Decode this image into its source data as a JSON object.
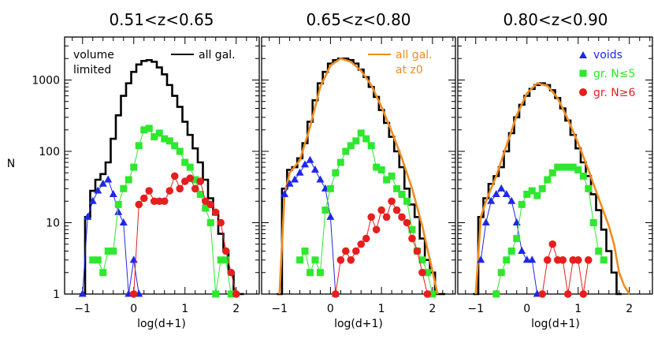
{
  "figure": {
    "ylabel": "N",
    "ytick_labels": [
      "1",
      "10",
      "100",
      "1000"
    ]
  },
  "colors": {
    "all_gal": "#000000",
    "all_gal_z0": "#f08c1e",
    "voids": "#1e28e6",
    "groups_small": "#2ee82e",
    "groups_large": "#e61e1e"
  },
  "chart_data": [
    {
      "type": "line",
      "title": "0.51<z<0.65",
      "xlabel": "log(d+1)",
      "ylabel": "N",
      "xlim": [
        -1.35,
        2.45
      ],
      "ylim": [
        1,
        4000
      ],
      "yscale": "log",
      "x_ticks": [
        "-1",
        "0",
        "1",
        "2"
      ],
      "annotation": [
        "volume",
        "limited"
      ],
      "legend": {
        "all_gal": "all gal."
      },
      "series": [
        {
          "name": "all gal.",
          "style": "step",
          "x": [
            -1.0,
            -0.9,
            -0.8,
            -0.7,
            -0.6,
            -0.5,
            -0.4,
            -0.3,
            -0.2,
            -0.1,
            0.0,
            0.1,
            0.2,
            0.3,
            0.4,
            0.5,
            0.6,
            0.7,
            0.8,
            0.9,
            1.0,
            1.1,
            1.2,
            1.3,
            1.4,
            1.5,
            1.6,
            1.7,
            1.8,
            1.9,
            2.0,
            2.1
          ],
          "y": [
            1,
            12,
            28,
            40,
            48,
            70,
            150,
            320,
            600,
            900,
            1300,
            1650,
            1850,
            1900,
            1800,
            1500,
            1200,
            850,
            600,
            420,
            260,
            170,
            110,
            70,
            40,
            22,
            13,
            7,
            4,
            2,
            1,
            1
          ]
        },
        {
          "name": "voids",
          "style": "triangle",
          "x": [
            -1.0,
            -0.9,
            -0.8,
            -0.7,
            -0.6,
            -0.5,
            -0.4,
            -0.3,
            -0.2,
            -0.1,
            0.0,
            0.1
          ],
          "y": [
            1,
            12,
            20,
            28,
            35,
            40,
            25,
            14,
            10,
            1,
            3,
            1
          ]
        },
        {
          "name": "gr. N≤5",
          "style": "square",
          "x": [
            -0.8,
            -0.7,
            -0.6,
            -0.5,
            -0.4,
            -0.3,
            -0.2,
            -0.1,
            0.0,
            0.1,
            0.2,
            0.3,
            0.4,
            0.5,
            0.6,
            0.7,
            0.8,
            0.9,
            1.0,
            1.1,
            1.2,
            1.3,
            1.4,
            1.5,
            1.6,
            1.7,
            1.8,
            1.9
          ],
          "y": [
            3,
            3,
            2,
            4,
            4,
            18,
            30,
            40,
            60,
            120,
            200,
            210,
            160,
            180,
            150,
            140,
            120,
            100,
            70,
            60,
            40,
            25,
            16,
            10,
            1,
            3,
            3,
            1
          ]
        },
        {
          "name": "gr. N≥6",
          "style": "circle",
          "x": [
            0.0,
            0.1,
            0.2,
            0.3,
            0.4,
            0.5,
            0.6,
            0.7,
            0.8,
            0.9,
            1.0,
            1.1,
            1.2,
            1.3,
            1.4,
            1.5,
            1.6,
            1.7,
            1.8,
            1.9,
            2.0
          ],
          "y": [
            1,
            18,
            22,
            28,
            20,
            20,
            20,
            28,
            45,
            30,
            38,
            42,
            30,
            38,
            20,
            18,
            14,
            10,
            4,
            2,
            1
          ]
        }
      ]
    },
    {
      "type": "line",
      "title": "0.65<z<0.80",
      "xlabel": "log(d+1)",
      "ylabel": "",
      "xlim": [
        -1.35,
        2.45
      ],
      "ylim": [
        1,
        4000
      ],
      "yscale": "log",
      "x_ticks": [
        "-1",
        "0",
        "1",
        "2"
      ],
      "legend": {
        "all_gal_z0": [
          "all gal.",
          "at z0"
        ]
      },
      "series": [
        {
          "name": "all gal.",
          "style": "step",
          "x": [
            -1.0,
            -0.9,
            -0.8,
            -0.7,
            -0.6,
            -0.5,
            -0.4,
            -0.3,
            -0.2,
            -0.1,
            0.0,
            0.1,
            0.2,
            0.3,
            0.4,
            0.5,
            0.6,
            0.7,
            0.8,
            0.9,
            1.0,
            1.1,
            1.2,
            1.3,
            1.4,
            1.5,
            1.6,
            1.7,
            1.8,
            1.9,
            2.0,
            2.1,
            2.2
          ],
          "y": [
            1,
            30,
            55,
            60,
            80,
            130,
            260,
            520,
            900,
            1300,
            1700,
            1900,
            2000,
            2000,
            1900,
            1700,
            1400,
            1100,
            800,
            580,
            380,
            250,
            160,
            100,
            60,
            30,
            18,
            12,
            6,
            3,
            2,
            1,
            1
          ]
        },
        {
          "name": "all gal. at z0",
          "style": "line",
          "x": [
            -1.0,
            -0.9,
            -0.8,
            -0.6,
            -0.4,
            -0.2,
            0.0,
            0.2,
            0.4,
            0.6,
            0.8,
            1.0,
            1.2,
            1.4,
            1.6,
            1.8,
            1.95,
            2.1
          ],
          "y": [
            1,
            25,
            50,
            75,
            220,
            800,
            1600,
            2000,
            1800,
            1350,
            850,
            420,
            190,
            80,
            30,
            9,
            3,
            1
          ]
        },
        {
          "name": "voids",
          "style": "triangle",
          "x": [
            -0.9,
            -0.8,
            -0.7,
            -0.6,
            -0.5,
            -0.4,
            -0.3,
            -0.2,
            -0.1,
            0.0,
            0.1
          ],
          "y": [
            25,
            35,
            40,
            50,
            65,
            75,
            55,
            40,
            30,
            12,
            1
          ]
        },
        {
          "name": "gr. N≤5",
          "style": "square",
          "x": [
            -0.6,
            -0.5,
            -0.4,
            -0.3,
            -0.2,
            -0.1,
            0.0,
            0.1,
            0.2,
            0.3,
            0.4,
            0.5,
            0.6,
            0.7,
            0.8,
            0.9,
            1.0,
            1.1,
            1.2,
            1.3,
            1.4,
            1.5,
            1.6,
            1.7,
            1.8,
            1.9,
            2.0
          ],
          "y": [
            3,
            4,
            2,
            3,
            2,
            15,
            30,
            50,
            70,
            100,
            120,
            140,
            180,
            150,
            120,
            60,
            55,
            40,
            45,
            30,
            25,
            20,
            8,
            4,
            3,
            2,
            1
          ]
        },
        {
          "name": "gr. N≥6",
          "style": "circle",
          "x": [
            0.1,
            0.2,
            0.3,
            0.4,
            0.5,
            0.6,
            0.7,
            0.8,
            0.9,
            1.0,
            1.1,
            1.2,
            1.3,
            1.4,
            1.5,
            1.6,
            1.7,
            1.8,
            1.9
          ],
          "y": [
            1,
            3,
            4,
            3,
            4,
            5,
            6,
            12,
            8,
            15,
            12,
            20,
            15,
            12,
            10,
            6,
            4,
            2,
            1
          ]
        }
      ]
    },
    {
      "type": "line",
      "title": "0.80<z<0.90",
      "xlabel": "log(d+1)",
      "ylabel": "",
      "xlim": [
        -1.35,
        2.45
      ],
      "ylim": [
        1,
        4000
      ],
      "yscale": "log",
      "x_ticks": [
        "-1",
        "0",
        "1",
        "2"
      ],
      "legend": {
        "voids": "voids",
        "groups_small": "gr. N≤5",
        "groups_large": "gr. N≥6"
      },
      "series": [
        {
          "name": "all gal.",
          "style": "step",
          "x": [
            -1.0,
            -0.9,
            -0.8,
            -0.7,
            -0.6,
            -0.5,
            -0.4,
            -0.3,
            -0.2,
            -0.1,
            0.0,
            0.1,
            0.2,
            0.3,
            0.4,
            0.5,
            0.6,
            0.7,
            0.8,
            0.9,
            1.0,
            1.1,
            1.2,
            1.3,
            1.4,
            1.5,
            1.6,
            1.7,
            1.8
          ],
          "y": [
            1,
            12,
            22,
            35,
            45,
            60,
            100,
            180,
            300,
            450,
            600,
            750,
            850,
            900,
            850,
            720,
            560,
            400,
            270,
            170,
            110,
            70,
            45,
            25,
            15,
            8,
            4,
            2,
            1
          ]
        },
        {
          "name": "all gal. at z0",
          "style": "line",
          "x": [
            -1.0,
            -0.9,
            -0.8,
            -0.6,
            -0.4,
            -0.2,
            0.0,
            0.2,
            0.4,
            0.6,
            0.8,
            1.0,
            1.2,
            1.4,
            1.6,
            1.7,
            1.8,
            1.9,
            2.0
          ],
          "y": [
            1,
            12,
            20,
            45,
            120,
            320,
            650,
            900,
            830,
            560,
            280,
            130,
            55,
            22,
            9,
            5,
            2,
            1.3,
            1
          ]
        },
        {
          "name": "voids",
          "style": "triangle",
          "x": [
            -0.9,
            -0.8,
            -0.7,
            -0.6,
            -0.5,
            -0.4,
            -0.3,
            -0.2,
            -0.1,
            0.0,
            0.1,
            0.2
          ],
          "y": [
            3,
            10,
            20,
            25,
            30,
            25,
            20,
            10,
            4,
            3,
            3,
            1
          ]
        },
        {
          "name": "gr. N≤5",
          "style": "square",
          "x": [
            -0.6,
            -0.5,
            -0.4,
            -0.3,
            -0.2,
            -0.1,
            0.0,
            0.1,
            0.2,
            0.3,
            0.4,
            0.5,
            0.6,
            0.7,
            0.8,
            0.9,
            1.0,
            1.1,
            1.2,
            1.3,
            1.4,
            1.5
          ],
          "y": [
            1,
            2,
            3,
            4,
            6,
            18,
            25,
            28,
            24,
            30,
            40,
            50,
            60,
            60,
            60,
            60,
            55,
            45,
            30,
            10,
            4,
            3
          ]
        },
        {
          "name": "gr. N≥6",
          "style": "circle",
          "x": [
            0.3,
            0.4,
            0.5,
            0.6,
            0.7,
            0.8,
            0.9,
            1.0,
            1.1,
            1.2
          ],
          "y": [
            1,
            3,
            5,
            3,
            3,
            1,
            3,
            3,
            1,
            3
          ]
        }
      ]
    }
  ]
}
